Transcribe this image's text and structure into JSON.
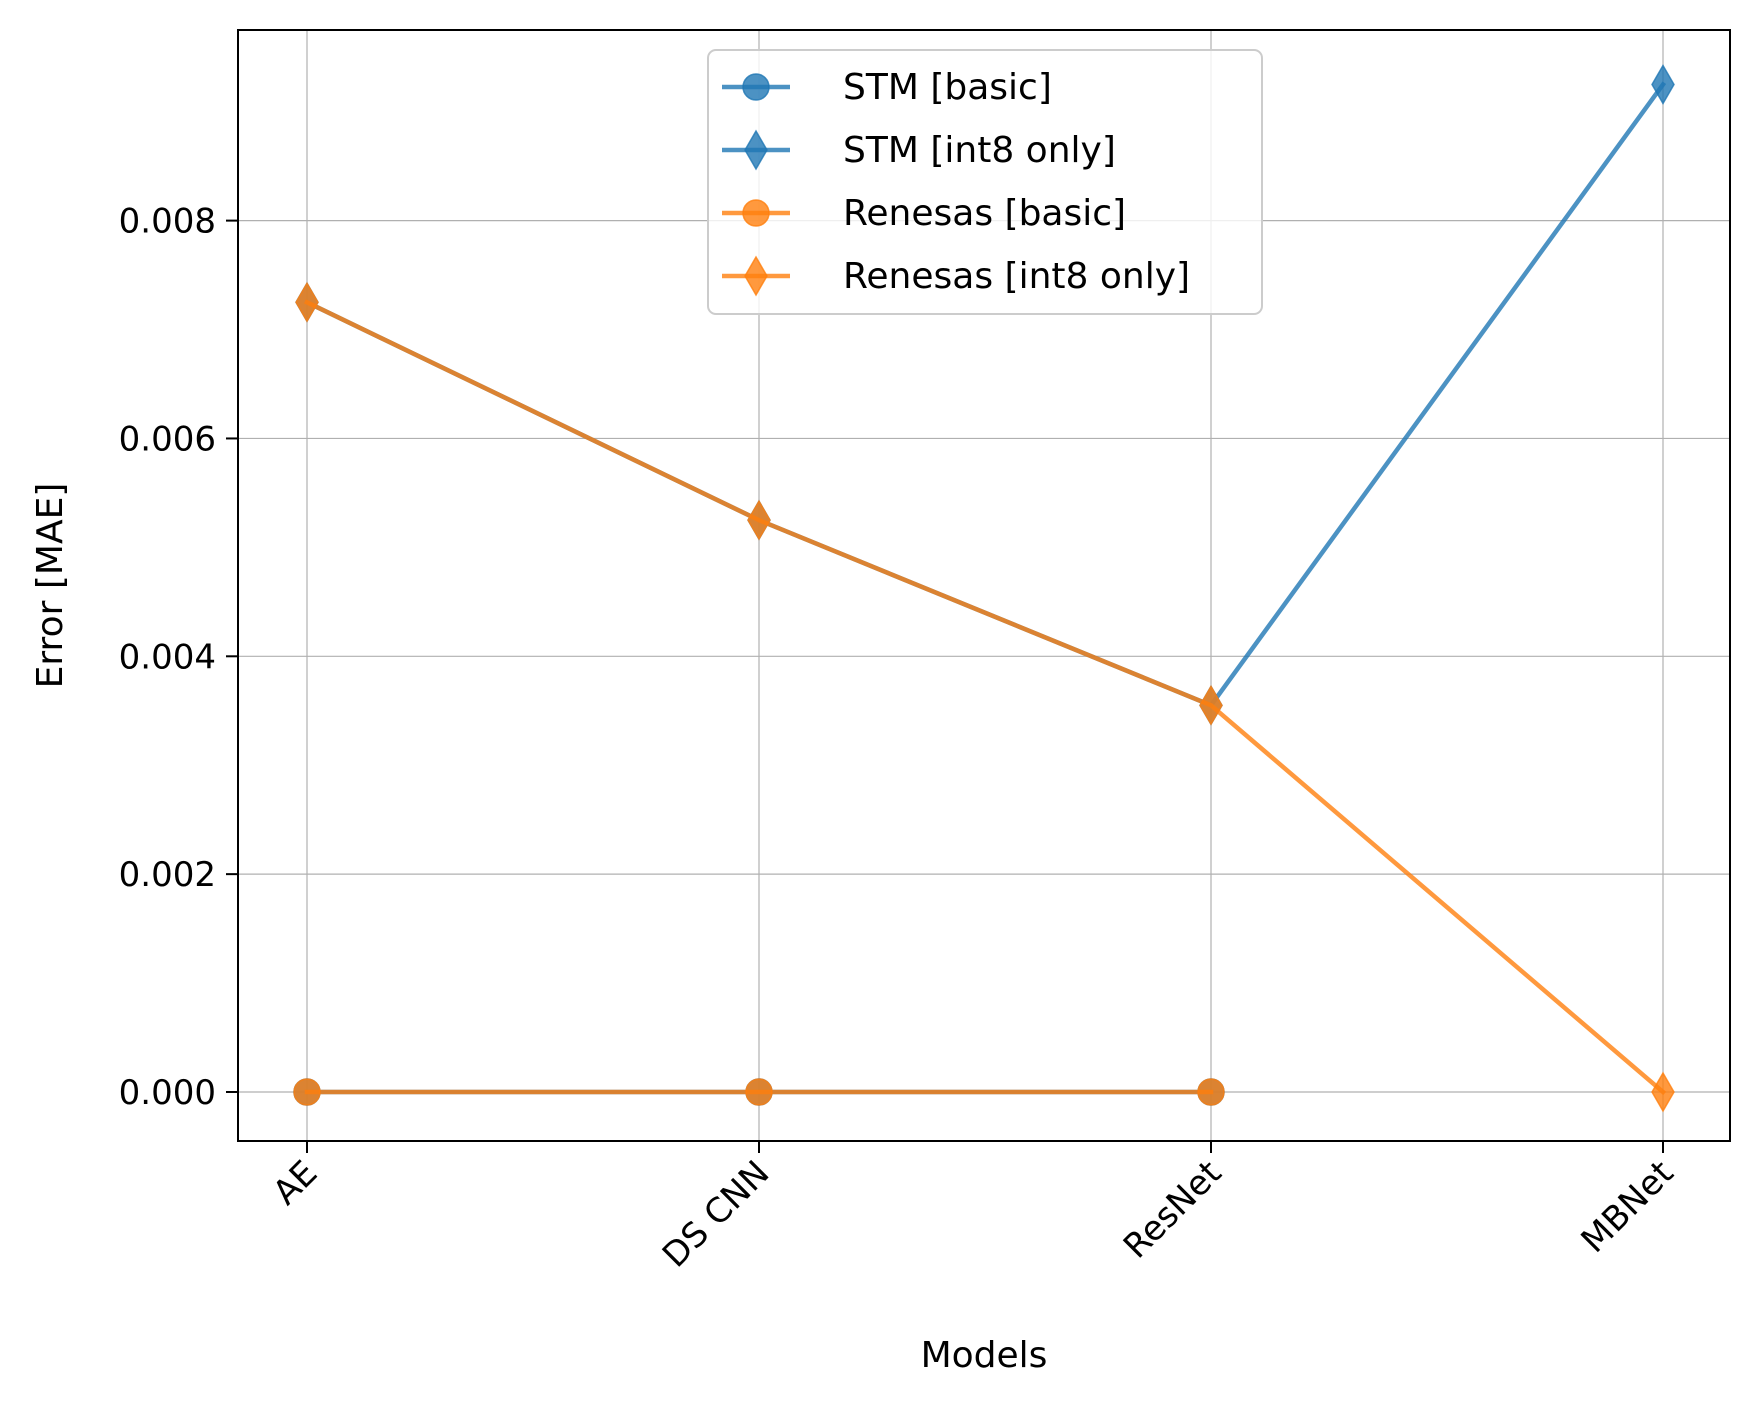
{
  "chart_data": {
    "type": "line",
    "categories": [
      "AE",
      "DS CNN",
      "ResNet",
      "MBNet"
    ],
    "xlabel": "Models",
    "ylabel": "Error [MAE]",
    "ylim": [
      -0.00045,
      0.00975
    ],
    "yticks": [
      0.0,
      0.002,
      0.004,
      0.006,
      0.008
    ],
    "ytick_labels": [
      "0.000",
      "0.002",
      "0.004",
      "0.006",
      "0.008"
    ],
    "grid": true,
    "legend_position": "top-center",
    "x_tick_rotation": 45,
    "series": [
      {
        "name": "STM [basic]",
        "marker": "circle",
        "color": "#1f77b4",
        "values": [
          0.0,
          0.0,
          0.0,
          null
        ]
      },
      {
        "name": "STM [int8 only]",
        "marker": "diamond",
        "color": "#1f77b4",
        "values": [
          0.00725,
          0.00525,
          0.00355,
          0.00925
        ]
      },
      {
        "name": "Renesas [basic]",
        "marker": "circle",
        "color": "#ff7f0e",
        "values": [
          0.0,
          0.0,
          0.0,
          null
        ]
      },
      {
        "name": "Renesas [int8 only]",
        "marker": "diamond",
        "color": "#ff7f0e",
        "values": [
          0.00725,
          0.00525,
          0.00355,
          0.0
        ]
      }
    ]
  }
}
